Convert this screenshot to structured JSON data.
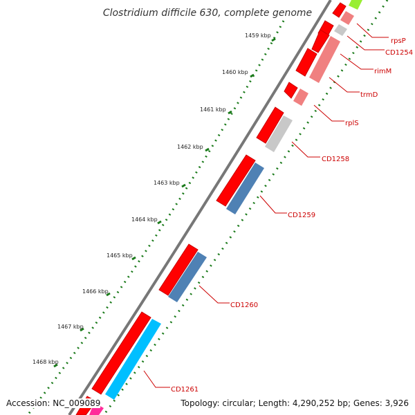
{
  "title": "Clostridium difficile 630, complete genome",
  "accession": "Accession: NC_009089",
  "topology": "Topology: circular; Length: 4,290,252 bp; Genes: 3,926",
  "ticks": [
    {
      "label": "1459 kbp"
    },
    {
      "label": "1460 kbp"
    },
    {
      "label": "1461 kbp"
    },
    {
      "label": "1462 kbp"
    },
    {
      "label": "1463 kbp"
    },
    {
      "label": "1464 kbp"
    },
    {
      "label": "1465 kbp"
    },
    {
      "label": "1466 kbp"
    },
    {
      "label": "1467 kbp"
    },
    {
      "label": "1468 kbp"
    }
  ],
  "genes": [
    {
      "label": "rpsP",
      "color": "#f08080"
    },
    {
      "label": "CD1254",
      "color": "#c8c8c8"
    },
    {
      "label": "rimM",
      "color": "#f08080"
    },
    {
      "label": "trmD",
      "color": "#f08080"
    },
    {
      "label": "rplS",
      "color": "#f08080"
    },
    {
      "label": "CD1258",
      "color": "#c8c8c8"
    },
    {
      "label": "CD1259",
      "color": "#4f81b4"
    },
    {
      "label": "CD1260",
      "color": "#4f81b4"
    },
    {
      "label": "CD1261",
      "color": "#00bfff"
    }
  ],
  "colors": {
    "cds_strand": "#ff0000",
    "backbone": "#777777",
    "tick_green": "#1a7a1a",
    "label_red": "#cc0000"
  }
}
